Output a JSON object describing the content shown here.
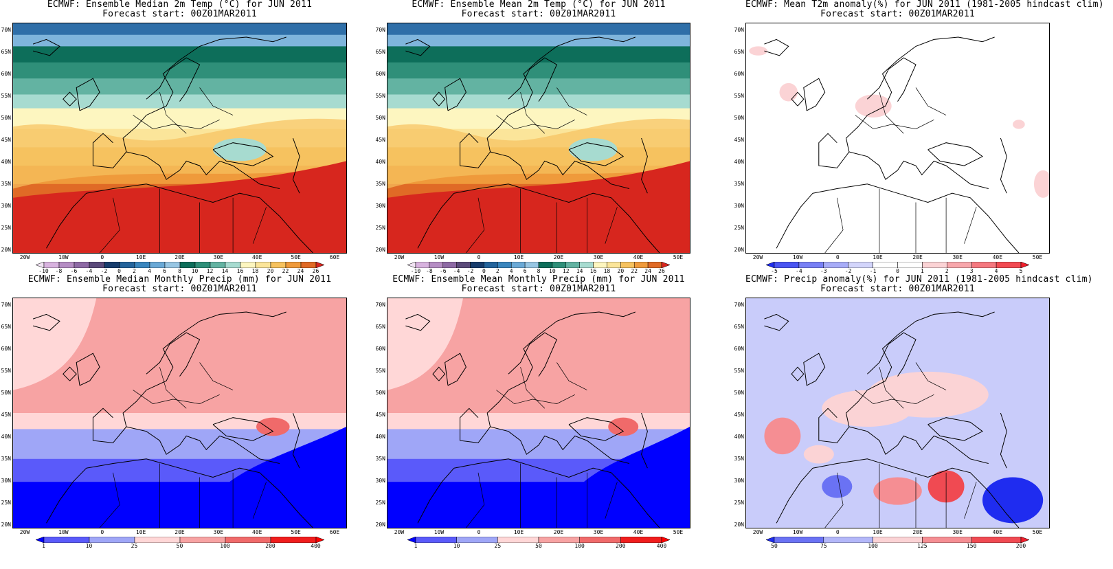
{
  "panels": [
    {
      "title1": "ECMWF: Ensemble Median 2m Temp (°C) for JUN 2011",
      "title2": "Forecast start: 00Z01MAR2011",
      "kind": "temp",
      "lons": [
        "20W",
        "10W",
        "0",
        "10E",
        "20E",
        "30E",
        "40E",
        "50E",
        "60E"
      ],
      "cbar_labels": [
        "-10",
        "-8",
        "-6",
        "-4",
        "-2",
        "0",
        "2",
        "4",
        "6",
        "8",
        "10",
        "12",
        "14",
        "16",
        "18",
        "20",
        "22",
        "24",
        "26"
      ],
      "cbar_colors": [
        "#f1e3f3",
        "#d8b3df",
        "#b58dc4",
        "#8e6aa5",
        "#5b4a7a",
        "#173c6c",
        "#24649c",
        "#3a86be",
        "#6aa9d6",
        "#98c6e3",
        "#0d6e5a",
        "#2f8f79",
        "#63b3a2",
        "#a7dbd0",
        "#fdf6c0",
        "#fbe59a",
        "#f6c25f",
        "#ef9a3b",
        "#e06a26",
        "#d7261e"
      ]
    },
    {
      "title1": "ECMWF: Ensemble Mean 2m Temp (°C) for JUN 2011",
      "title2": "Forecast start: 00Z01MAR2011",
      "kind": "temp",
      "lons": [
        "20W",
        "10W",
        "0",
        "10E",
        "20E",
        "30E",
        "40E",
        "50E"
      ],
      "cbar_labels": [
        "-10",
        "-8",
        "-6",
        "-4",
        "-2",
        "0",
        "2",
        "4",
        "6",
        "8",
        "10",
        "12",
        "14",
        "16",
        "18",
        "20",
        "22",
        "24",
        "26"
      ],
      "cbar_colors": [
        "#f1e3f3",
        "#d8b3df",
        "#b58dc4",
        "#8e6aa5",
        "#5b4a7a",
        "#173c6c",
        "#24649c",
        "#3a86be",
        "#6aa9d6",
        "#98c6e3",
        "#0d6e5a",
        "#2f8f79",
        "#63b3a2",
        "#a7dbd0",
        "#fdf6c0",
        "#fbe59a",
        "#f6c25f",
        "#ef9a3b",
        "#e06a26",
        "#d7261e"
      ]
    },
    {
      "title1": "ECMWF: Mean T2m anomaly(%) for JUN 2011 (1981-2005 hindcast clim)",
      "title2": "Forecast start: 00Z01MAR2011",
      "kind": "tanom",
      "lons": [
        "20W",
        "10W",
        "0",
        "10E",
        "20E",
        "30E",
        "40E",
        "50E"
      ],
      "cbar_labels": [
        "-5",
        "-4",
        "-3",
        "-2",
        "-1",
        "0",
        "1",
        "2",
        "3",
        "4",
        "5"
      ],
      "cbar_colors": [
        "#1f2cf0",
        "#4a55f2",
        "#7880f5",
        "#a7acf8",
        "#d3d5fb",
        "#ffffff",
        "#ffffff",
        "#fbd3d5",
        "#f8a7ac",
        "#f5787f",
        "#f24a52",
        "#f01f2c"
      ]
    },
    {
      "title1": "ECMWF: Ensemble Median Monthly Precip (mm) for JUN 2011",
      "title2": "Forecast start: 00Z01MAR2011",
      "kind": "precip",
      "lons": [
        "20W",
        "10W",
        "0",
        "10E",
        "20E",
        "30E",
        "40E",
        "50E",
        "60E"
      ],
      "cbar_labels": [
        "1",
        "10",
        "25",
        "50",
        "100",
        "200",
        "400"
      ],
      "cbar_colors": [
        "#0000ff",
        "#5a5afa",
        "#9fa6f7",
        "#ffd7d7",
        "#f7a3a3",
        "#f06a6a",
        "#f01d1d",
        "#ff0000"
      ]
    },
    {
      "title1": "ECMWF: Ensemble Mean Monthly Precip (mm) for JUN 2011",
      "title2": "Forecast start: 00Z01MAR2011",
      "kind": "precip",
      "lons": [
        "20W",
        "10W",
        "0",
        "10E",
        "20E",
        "30E",
        "40E",
        "50E"
      ],
      "cbar_labels": [
        "1",
        "10",
        "25",
        "50",
        "100",
        "200",
        "400"
      ],
      "cbar_colors": [
        "#0000ff",
        "#5a5afa",
        "#9fa6f7",
        "#ffd7d7",
        "#f7a3a3",
        "#f06a6a",
        "#f01d1d",
        "#ff0000"
      ]
    },
    {
      "title1": "ECMWF: Precip anomaly(%) for JUN 2011 (1981-2005 hindcast clim)",
      "title2": "Forecast start: 00Z01MAR2011",
      "kind": "panom",
      "lons": [
        "20W",
        "10W",
        "0",
        "10E",
        "20E",
        "30E",
        "40E",
        "50E"
      ],
      "cbar_labels": [
        "50",
        "75",
        "100",
        "125",
        "150",
        "200"
      ],
      "cbar_colors": [
        "#1f2cf0",
        "#6a72f4",
        "#b3b7f9",
        "#fbd3d5",
        "#f58e93",
        "#f04a52",
        "#f01f2c"
      ]
    }
  ],
  "lats": [
    "70N",
    "65N",
    "60N",
    "55N",
    "50N",
    "45N",
    "40N",
    "35N",
    "30N",
    "25N",
    "20N"
  ]
}
